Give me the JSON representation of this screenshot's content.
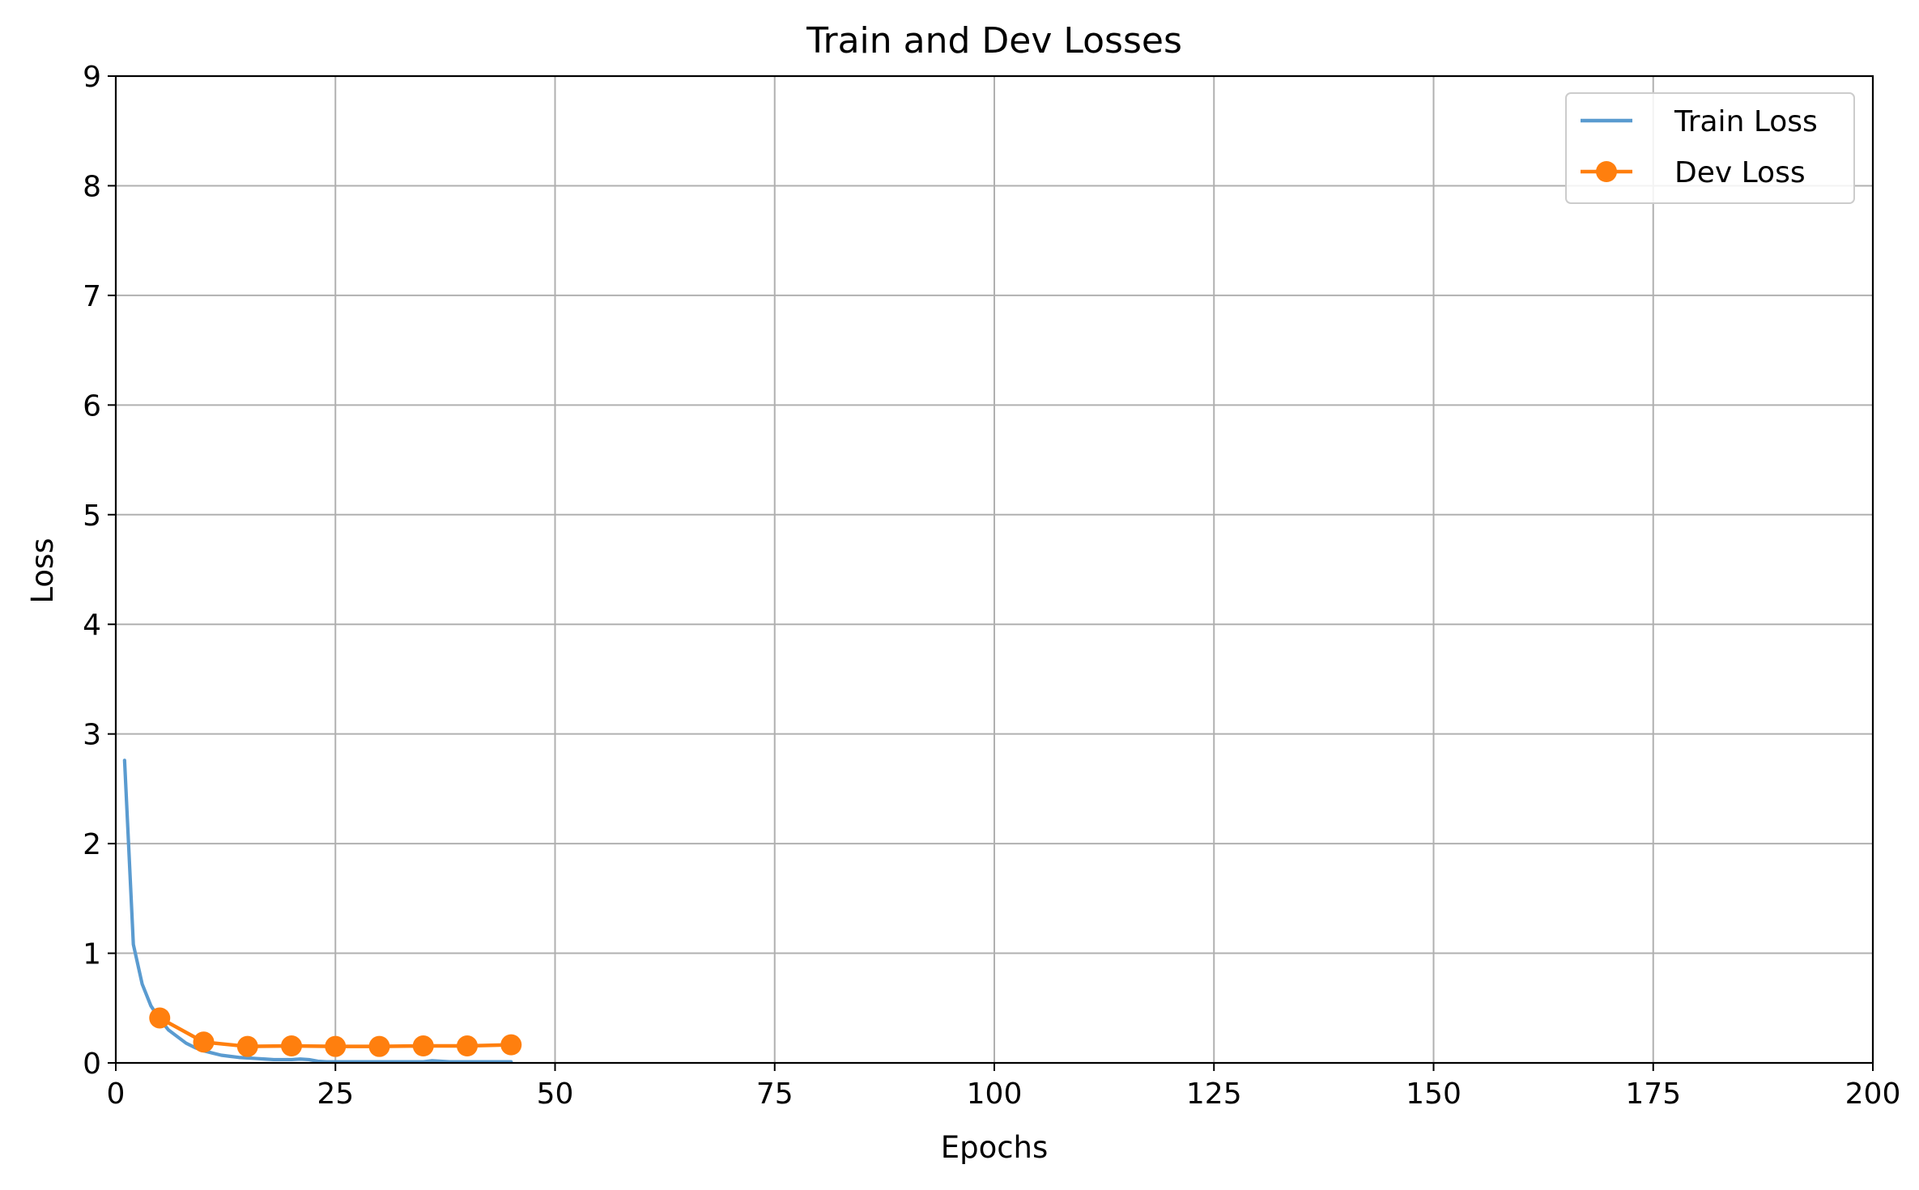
{
  "chart_data": {
    "type": "line",
    "title": "Train and Dev Losses",
    "xlabel": "Epochs",
    "ylabel": "Loss",
    "xlim": [
      0,
      200
    ],
    "ylim": [
      0,
      9
    ],
    "xticks": [
      0,
      25,
      50,
      75,
      100,
      125,
      150,
      175,
      200
    ],
    "yticks": [
      0,
      1,
      2,
      3,
      4,
      5,
      6,
      7,
      8,
      9
    ],
    "grid": true,
    "legend_position": "top-right",
    "series": [
      {
        "name": "Train Loss",
        "color": "#5a9bd0",
        "marker": "none",
        "x": [
          1,
          2,
          3,
          4,
          5,
          6,
          7,
          8,
          9,
          10,
          11,
          12,
          13,
          14,
          15,
          16,
          17,
          18,
          19,
          20,
          21,
          22,
          23,
          24,
          25,
          26,
          27,
          28,
          29,
          30,
          31,
          32,
          33,
          34,
          35,
          36,
          37,
          38,
          39,
          40,
          41,
          42,
          43,
          44,
          45
        ],
        "values": [
          2.76,
          1.08,
          0.72,
          0.52,
          0.4,
          0.3,
          0.24,
          0.18,
          0.14,
          0.11,
          0.09,
          0.07,
          0.06,
          0.05,
          0.045,
          0.04,
          0.035,
          0.03,
          0.03,
          0.03,
          0.035,
          0.03,
          0.015,
          0.01,
          0.01,
          0.01,
          0.01,
          0.01,
          0.01,
          0.01,
          0.01,
          0.01,
          0.01,
          0.01,
          0.01,
          0.02,
          0.015,
          0.01,
          0.01,
          0.01,
          0.01,
          0.01,
          0.01,
          0.01,
          0.01
        ]
      },
      {
        "name": "Dev Loss",
        "color": "#ff7f0e",
        "marker": "circle",
        "x": [
          5,
          10,
          15,
          20,
          25,
          30,
          35,
          40,
          45
        ],
        "values": [
          0.41,
          0.19,
          0.15,
          0.155,
          0.15,
          0.15,
          0.155,
          0.155,
          0.165
        ]
      }
    ]
  }
}
